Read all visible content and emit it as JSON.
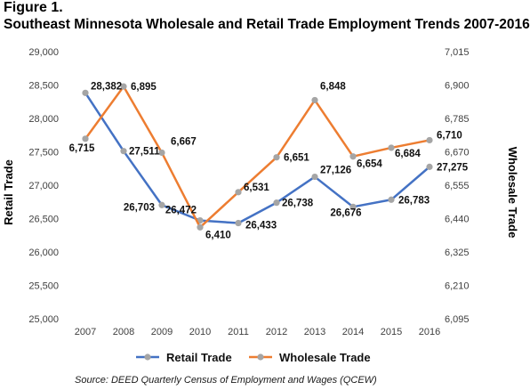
{
  "figure_label": "Figure 1.",
  "source_text": "Source: DEED Quarterly Census of Employment and Wages (QCEW)",
  "chart_data": {
    "type": "line",
    "title": "Southeast Minnesota Wholesale and Retail Trade Employment Trends 2007-2016",
    "x": [
      "2007",
      "2008",
      "2009",
      "2010",
      "2011",
      "2012",
      "2013",
      "2014",
      "2015",
      "2016"
    ],
    "y_left": {
      "label": "Retail Trade",
      "range": [
        25000,
        29000
      ],
      "ticks": [
        "25,000",
        "25,500",
        "26,000",
        "26,500",
        "27,000",
        "27,500",
        "28,000",
        "28,500",
        "29,000"
      ]
    },
    "y_right": {
      "label": "Wholesale Trade",
      "range": [
        6095,
        7015
      ],
      "ticks": [
        "6,095",
        "6,210",
        "6,325",
        "6,440",
        "6,555",
        "6,670",
        "6,785",
        "6,900",
        "7,015"
      ]
    },
    "series": [
      {
        "name": "Retail Trade",
        "axis": "left",
        "color": "#4472C4",
        "marker_color": "#A5A5A5",
        "values": [
          28382,
          27511,
          26703,
          26472,
          26433,
          26738,
          27126,
          26676,
          26783,
          27275
        ],
        "labels": [
          "28,382",
          "27,511",
          "26,703",
          "26,472",
          "26,433",
          "26,738",
          "27,126",
          "26,676",
          "26,783",
          "27,275"
        ]
      },
      {
        "name": "Wholesale Trade",
        "axis": "right",
        "color": "#ED7D31",
        "marker_color": "#A5A5A5",
        "values": [
          6715,
          6895,
          6667,
          6410,
          6531,
          6651,
          6848,
          6654,
          6684,
          6710
        ],
        "labels": [
          "6,715",
          "6,895",
          "6,667",
          "6,410",
          "6,531",
          "6,651",
          "6,848",
          "6,654",
          "6,684",
          "6,710"
        ]
      }
    ],
    "grid": false,
    "legend_position": "bottom"
  }
}
